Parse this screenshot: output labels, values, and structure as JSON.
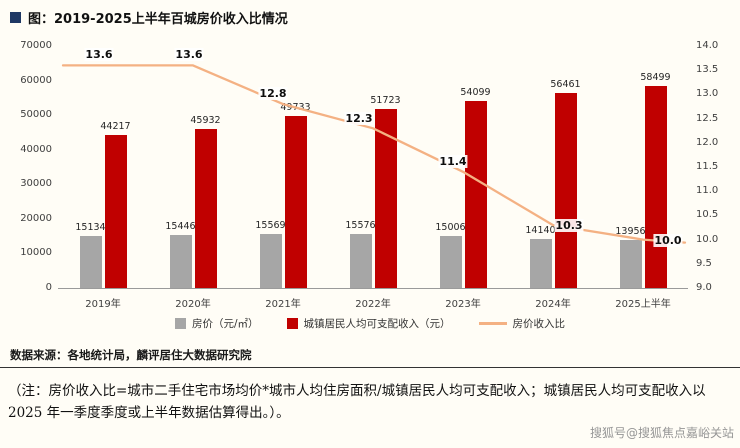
{
  "header": {
    "title": "图：2019-2025上半年百城房价收入比情况"
  },
  "chart_data": {
    "type": "bar",
    "subtype": "grouped-bars-with-line",
    "categories": [
      "2019年",
      "2020年",
      "2021年",
      "2022年",
      "2023年",
      "2024年",
      "2025上半年"
    ],
    "series": [
      {
        "name": "房价（元/㎡）",
        "kind": "bar",
        "axis": "left",
        "color": "#a6a6a6",
        "values": [
          15134,
          15446,
          15569,
          15576,
          15006,
          14140,
          13956
        ]
      },
      {
        "name": "城镇居民人均可支配收入（元）",
        "kind": "bar",
        "axis": "left",
        "color": "#c00000",
        "values": [
          44217,
          45932,
          49733,
          51723,
          54099,
          56461,
          58499
        ]
      },
      {
        "name": "房价收入比",
        "kind": "line",
        "axis": "right",
        "color": "#f4b183",
        "values": [
          13.6,
          13.6,
          12.8,
          12.3,
          11.4,
          10.3,
          10.0
        ]
      }
    ],
    "left_axis": {
      "min": 0,
      "max": 70000,
      "step": 10000,
      "ticks": [
        "70000",
        "60000",
        "50000",
        "40000",
        "30000",
        "20000",
        "10000",
        "0"
      ]
    },
    "right_axis": {
      "min": 9.0,
      "max": 14.0,
      "step": 0.5,
      "ticks": [
        "14.0",
        "13.5",
        "13.0",
        "12.5",
        "12.0",
        "11.5",
        "11.0",
        "10.5",
        "10.0",
        "9.5",
        "9.0"
      ]
    },
    "grid": false,
    "legend_position": "bottom"
  },
  "footer": {
    "source": "数据来源：各地统计局，麟评居住大数据研究院",
    "note": "（注：房价收入比=城市二手住宅市场均价*城市人均住房面积/城镇居民人均可支配收入；城镇居民人均可支配收入以 2025 年一季度季度或上半年数据估算得出。）。",
    "watermark": "搜狐号@搜狐焦点嘉峪关站"
  }
}
